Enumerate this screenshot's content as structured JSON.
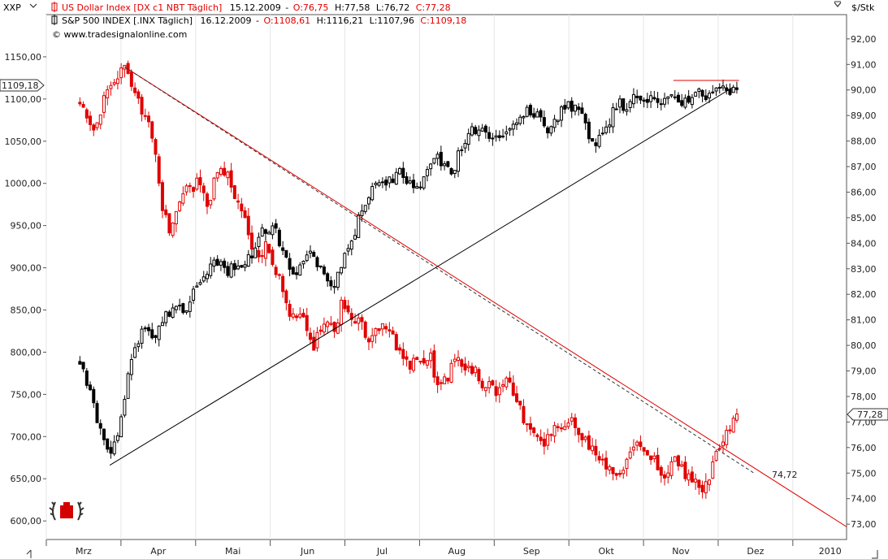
{
  "chart_data": {
    "type": "candlestick",
    "symbol_label": "XXP",
    "right_axis_unit": "$/Stk",
    "legend": [
      {
        "id": "usd",
        "color": "#e00000",
        "name": "US Dollar Index [DX c1 NBT  Täglich]",
        "date": "15.12.2009",
        "o_label": "O:76,75",
        "h_label": "H:77,58",
        "l_label": "L:76,72",
        "c_label": "C:77,28"
      },
      {
        "id": "spx",
        "color": "#000000",
        "name": "S&P 500 INDEX [.INX  Täglich]",
        "date": "16.12.2009",
        "o_label": "O:1108,61",
        "h_label": "H:1116,21",
        "l_label": "L:1107,96",
        "c_label": "C:1109,18"
      }
    ],
    "source_label": "© www.tradesignalonline.com",
    "left_axis": {
      "ticks": [
        "1150,00",
        "1100,00",
        "1050,00",
        "1000,00",
        "950,00",
        "900,00",
        "850,00",
        "800,00",
        "750,00",
        "700,00",
        "650,00",
        "600,00"
      ],
      "values": [
        1150,
        1100,
        1050,
        1000,
        950,
        900,
        850,
        800,
        750,
        700,
        650,
        600
      ],
      "range": [
        578,
        1200
      ]
    },
    "right_axis": {
      "ticks": [
        "92,00",
        "91,00",
        "90,00",
        "89,00",
        "88,00",
        "87,00",
        "86,00",
        "85,00",
        "84,00",
        "83,00",
        "82,00",
        "81,00",
        "80,00",
        "79,00",
        "78,00",
        "77,00",
        "76,00",
        "75,00",
        "74,00",
        "73,00"
      ],
      "values": [
        92,
        91,
        90,
        89,
        88,
        87,
        86,
        85,
        84,
        83,
        82,
        81,
        80,
        79,
        78,
        77,
        76,
        75,
        74,
        73
      ],
      "range": [
        72.4,
        92.95
      ]
    },
    "x_axis": {
      "months": [
        "Mrz",
        "Apr",
        "Mai",
        "Jun",
        "Jul",
        "Aug",
        "Sep",
        "Okt",
        "Nov",
        "Dez",
        "2010"
      ],
      "month_index": [
        1,
        2,
        3,
        4,
        5,
        6,
        7,
        8,
        9,
        10,
        11
      ]
    },
    "last_value_tags": {
      "spx": "1109,18",
      "usd": "77,28"
    },
    "trendline_annotation": "74,72",
    "usd_anchors": [
      [
        0.95,
        89.6
      ],
      [
        1.05,
        89.0
      ],
      [
        1.15,
        88.6
      ],
      [
        1.25,
        89.5
      ],
      [
        1.35,
        89.9
      ],
      [
        1.45,
        90.5
      ],
      [
        1.55,
        90.9
      ],
      [
        1.65,
        90.2
      ],
      [
        1.75,
        89.5
      ],
      [
        1.85,
        88.8
      ],
      [
        1.95,
        88.1
      ],
      [
        2.05,
        85.2
      ],
      [
        2.15,
        84.6
      ],
      [
        2.25,
        85.5
      ],
      [
        2.35,
        86.3
      ],
      [
        2.45,
        85.9
      ],
      [
        2.55,
        86.5
      ],
      [
        2.65,
        85.3
      ],
      [
        2.75,
        86.4
      ],
      [
        2.85,
        87.1
      ],
      [
        2.95,
        86.4
      ],
      [
        3.05,
        85.5
      ],
      [
        3.15,
        84.9
      ],
      [
        3.25,
        84.0
      ],
      [
        3.35,
        83.3
      ],
      [
        3.45,
        83.9
      ],
      [
        3.55,
        83.2
      ],
      [
        3.65,
        82.4
      ],
      [
        3.75,
        81.3
      ],
      [
        3.85,
        80.9
      ],
      [
        3.95,
        81.1
      ],
      [
        4.05,
        79.9
      ],
      [
        4.15,
        80.4
      ],
      [
        4.25,
        81.2
      ],
      [
        4.35,
        80.7
      ],
      [
        4.45,
        81.5
      ],
      [
        4.55,
        81.2
      ],
      [
        4.65,
        81.0
      ],
      [
        4.75,
        80.6
      ],
      [
        4.85,
        80.3
      ],
      [
        4.95,
        80.8
      ],
      [
        5.05,
        80.9
      ],
      [
        5.15,
        80.2
      ],
      [
        5.25,
        79.6
      ],
      [
        5.35,
        79.2
      ],
      [
        5.45,
        79.3
      ],
      [
        5.55,
        79.0
      ],
      [
        5.65,
        79.5
      ],
      [
        5.75,
        78.3
      ],
      [
        5.85,
        78.6
      ],
      [
        5.95,
        79.4
      ],
      [
        6.05,
        79.2
      ],
      [
        6.15,
        79.3
      ],
      [
        6.25,
        78.9
      ],
      [
        6.35,
        78.4
      ],
      [
        6.45,
        78.6
      ],
      [
        6.55,
        78.2
      ],
      [
        6.65,
        78.6
      ],
      [
        6.75,
        78.2
      ],
      [
        6.85,
        77.4
      ],
      [
        6.95,
        76.8
      ],
      [
        7.05,
        76.5
      ],
      [
        7.15,
        76.2
      ],
      [
        7.25,
        76.6
      ],
      [
        7.35,
        77.0
      ],
      [
        7.45,
        76.9
      ],
      [
        7.55,
        77.1
      ],
      [
        7.65,
        76.7
      ],
      [
        7.75,
        76.0
      ],
      [
        7.85,
        75.7
      ],
      [
        7.95,
        75.5
      ],
      [
        8.05,
        75.3
      ],
      [
        8.15,
        75.1
      ],
      [
        8.25,
        75.3
      ],
      [
        8.35,
        76.2
      ],
      [
        8.45,
        76.1
      ],
      [
        8.55,
        75.8
      ],
      [
        8.65,
        75.4
      ],
      [
        8.75,
        74.8
      ],
      [
        8.85,
        75.3
      ],
      [
        8.95,
        75.6
      ],
      [
        9.05,
        75.0
      ],
      [
        9.15,
        74.6
      ],
      [
        9.25,
        74.4
      ],
      [
        9.35,
        74.6
      ],
      [
        9.45,
        75.8
      ],
      [
        9.55,
        76.0
      ],
      [
        9.65,
        76.7
      ],
      [
        9.75,
        77.3
      ]
    ],
    "spx_anchors": [
      [
        0.95,
        790
      ],
      [
        1.05,
        760
      ],
      [
        1.15,
        730
      ],
      [
        1.25,
        700
      ],
      [
        1.35,
        683
      ],
      [
        1.45,
        700
      ],
      [
        1.55,
        748
      ],
      [
        1.65,
        800
      ],
      [
        1.75,
        818
      ],
      [
        1.85,
        830
      ],
      [
        1.95,
        815
      ],
      [
        2.05,
        836
      ],
      [
        2.15,
        848
      ],
      [
        2.25,
        858
      ],
      [
        2.35,
        848
      ],
      [
        2.45,
        868
      ],
      [
        2.55,
        888
      ],
      [
        2.65,
        898
      ],
      [
        2.75,
        910
      ],
      [
        2.85,
        902
      ],
      [
        2.95,
        895
      ],
      [
        3.05,
        905
      ],
      [
        3.15,
        900
      ],
      [
        3.25,
        915
      ],
      [
        3.35,
        942
      ],
      [
        3.45,
        938
      ],
      [
        3.55,
        948
      ],
      [
        3.65,
        920
      ],
      [
        3.75,
        902
      ],
      [
        3.85,
        896
      ],
      [
        3.95,
        912
      ],
      [
        4.05,
        918
      ],
      [
        4.15,
        905
      ],
      [
        4.25,
        885
      ],
      [
        4.35,
        875
      ],
      [
        4.45,
        900
      ],
      [
        4.55,
        925
      ],
      [
        4.65,
        948
      ],
      [
        4.75,
        975
      ],
      [
        4.85,
        992
      ],
      [
        4.95,
        1002
      ],
      [
        5.05,
        1000
      ],
      [
        5.15,
        1007
      ],
      [
        5.25,
        1012
      ],
      [
        5.35,
        1000
      ],
      [
        5.45,
        995
      ],
      [
        5.55,
        1005
      ],
      [
        5.65,
        1023
      ],
      [
        5.75,
        1032
      ],
      [
        5.85,
        1020
      ],
      [
        5.95,
        1012
      ],
      [
        6.05,
        1042
      ],
      [
        6.15,
        1060
      ],
      [
        6.25,
        1065
      ],
      [
        6.35,
        1058
      ],
      [
        6.45,
        1055
      ],
      [
        6.55,
        1048
      ],
      [
        6.65,
        1060
      ],
      [
        6.75,
        1068
      ],
      [
        6.85,
        1080
      ],
      [
        6.95,
        1090
      ],
      [
        7.05,
        1083
      ],
      [
        7.15,
        1070
      ],
      [
        7.25,
        1060
      ],
      [
        7.35,
        1080
      ],
      [
        7.45,
        1090
      ],
      [
        7.55,
        1092
      ],
      [
        7.65,
        1088
      ],
      [
        7.75,
        1062
      ],
      [
        7.85,
        1045
      ],
      [
        7.95,
        1060
      ],
      [
        8.05,
        1075
      ],
      [
        8.15,
        1095
      ],
      [
        8.25,
        1090
      ],
      [
        8.35,
        1102
      ],
      [
        8.45,
        1105
      ],
      [
        8.55,
        1098
      ],
      [
        8.65,
        1105
      ],
      [
        8.75,
        1092
      ],
      [
        8.85,
        1108
      ],
      [
        8.95,
        1100
      ],
      [
        9.05,
        1095
      ],
      [
        9.15,
        1103
      ],
      [
        9.25,
        1110
      ],
      [
        9.35,
        1103
      ],
      [
        9.45,
        1108
      ],
      [
        9.55,
        1112
      ],
      [
        9.65,
        1110
      ],
      [
        9.75,
        1109
      ]
    ]
  }
}
